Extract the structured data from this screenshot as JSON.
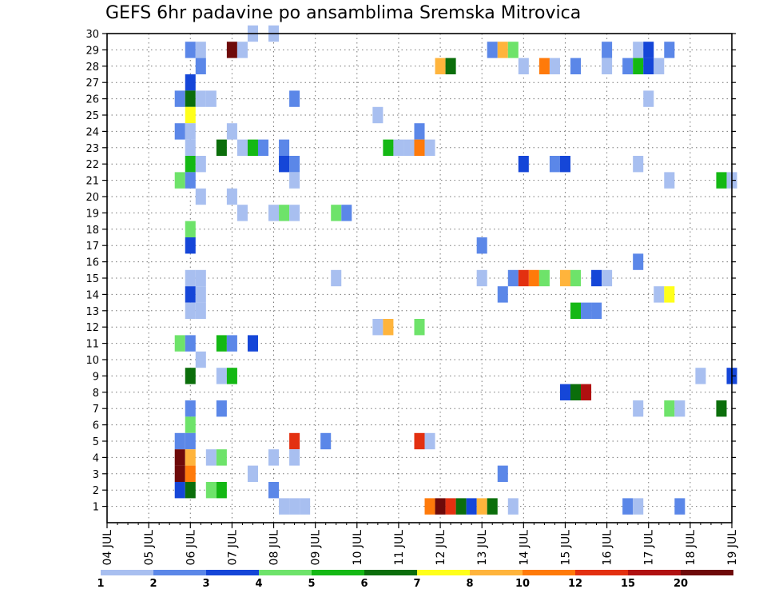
{
  "chart_data": {
    "type": "heatmap",
    "title": "GEFS 6hr padavine po ansamblima Sremska Mitrovica",
    "x_tick_labels": [
      "04 JUL",
      "05 JUL",
      "06 JUL",
      "07 JUL",
      "08 JUL",
      "09 JUL",
      "10 JUL",
      "11 JUL",
      "12 JUL",
      "13 JUL",
      "14 JUL",
      "15 JUL",
      "16 JUL",
      "17 JUL",
      "18 JUL",
      "19 JUL"
    ],
    "x_range_days": [
      0,
      15
    ],
    "y_tick_labels": [
      "1",
      "2",
      "3",
      "4",
      "5",
      "6",
      "7",
      "8",
      "9",
      "10",
      "11",
      "12",
      "13",
      "14",
      "15",
      "16",
      "17",
      "18",
      "19",
      "20",
      "21",
      "22",
      "23",
      "24",
      "25",
      "26",
      "27",
      "28",
      "29",
      "30"
    ],
    "y_range": [
      0,
      30
    ],
    "grid": true,
    "colorbar": {
      "labels": [
        "1",
        "2",
        "3",
        "4",
        "5",
        "6",
        "7",
        "8",
        "10",
        "12",
        "15",
        "20"
      ],
      "colors": [
        "#a8bff0",
        "#5b87e8",
        "#1546d8",
        "#6ee36a",
        "#14b814",
        "#0b6e0b",
        "#ffff1a",
        "#ffb43c",
        "#ff7a0a",
        "#e33010",
        "#b01010",
        "#6e0a0a"
      ]
    },
    "cells": [
      {
        "x": 3.5,
        "y": 30,
        "c": 0
      },
      {
        "x": 4.0,
        "y": 30,
        "c": 0
      },
      {
        "x": 2.0,
        "y": 29,
        "c": 1
      },
      {
        "x": 2.25,
        "y": 29,
        "c": 0
      },
      {
        "x": 3.0,
        "y": 29,
        "c": 11
      },
      {
        "x": 3.25,
        "y": 29,
        "c": 0
      },
      {
        "x": 9.25,
        "y": 29,
        "c": 1
      },
      {
        "x": 9.5,
        "y": 29,
        "c": 7
      },
      {
        "x": 9.75,
        "y": 29,
        "c": 3
      },
      {
        "x": 12.0,
        "y": 29,
        "c": 1
      },
      {
        "x": 12.75,
        "y": 29,
        "c": 0
      },
      {
        "x": 13.0,
        "y": 29,
        "c": 2
      },
      {
        "x": 13.5,
        "y": 29,
        "c": 1
      },
      {
        "x": 2.25,
        "y": 28,
        "c": 1
      },
      {
        "x": 8.0,
        "y": 28,
        "c": 7
      },
      {
        "x": 8.25,
        "y": 28,
        "c": 5
      },
      {
        "x": 10.0,
        "y": 28,
        "c": 0
      },
      {
        "x": 10.5,
        "y": 28,
        "c": 8
      },
      {
        "x": 10.75,
        "y": 28,
        "c": 0
      },
      {
        "x": 11.25,
        "y": 28,
        "c": 1
      },
      {
        "x": 12.0,
        "y": 28,
        "c": 0
      },
      {
        "x": 12.5,
        "y": 28,
        "c": 1
      },
      {
        "x": 12.75,
        "y": 28,
        "c": 4
      },
      {
        "x": 13.0,
        "y": 28,
        "c": 2
      },
      {
        "x": 13.25,
        "y": 28,
        "c": 0
      },
      {
        "x": 2.0,
        "y": 27,
        "c": 2
      },
      {
        "x": 1.75,
        "y": 26,
        "c": 1
      },
      {
        "x": 2.0,
        "y": 26,
        "c": 5
      },
      {
        "x": 2.25,
        "y": 26,
        "c": 0
      },
      {
        "x": 2.5,
        "y": 26,
        "c": 0
      },
      {
        "x": 4.5,
        "y": 26,
        "c": 1
      },
      {
        "x": 13.0,
        "y": 26,
        "c": 0
      },
      {
        "x": 2.0,
        "y": 25,
        "c": 6
      },
      {
        "x": 6.5,
        "y": 25,
        "c": 0
      },
      {
        "x": 1.75,
        "y": 24,
        "c": 1
      },
      {
        "x": 2.0,
        "y": 24,
        "c": 0
      },
      {
        "x": 3.0,
        "y": 24,
        "c": 0
      },
      {
        "x": 7.5,
        "y": 24,
        "c": 1
      },
      {
        "x": 2.0,
        "y": 23,
        "c": 0
      },
      {
        "x": 2.75,
        "y": 23,
        "c": 5
      },
      {
        "x": 3.25,
        "y": 23,
        "c": 0
      },
      {
        "x": 3.5,
        "y": 23,
        "c": 4
      },
      {
        "x": 3.75,
        "y": 23,
        "c": 1
      },
      {
        "x": 4.25,
        "y": 23,
        "c": 1
      },
      {
        "x": 6.75,
        "y": 23,
        "c": 4
      },
      {
        "x": 7.0,
        "y": 23,
        "c": 0
      },
      {
        "x": 7.25,
        "y": 23,
        "c": 0
      },
      {
        "x": 7.5,
        "y": 23,
        "c": 8
      },
      {
        "x": 7.75,
        "y": 23,
        "c": 0
      },
      {
        "x": 2.0,
        "y": 22,
        "c": 4
      },
      {
        "x": 2.25,
        "y": 22,
        "c": 0
      },
      {
        "x": 4.25,
        "y": 22,
        "c": 2
      },
      {
        "x": 4.5,
        "y": 22,
        "c": 1
      },
      {
        "x": 10.0,
        "y": 22,
        "c": 2
      },
      {
        "x": 10.75,
        "y": 22,
        "c": 1
      },
      {
        "x": 11.0,
        "y": 22,
        "c": 2
      },
      {
        "x": 12.75,
        "y": 22,
        "c": 0
      },
      {
        "x": 1.75,
        "y": 21,
        "c": 3
      },
      {
        "x": 2.0,
        "y": 21,
        "c": 1
      },
      {
        "x": 4.5,
        "y": 21,
        "c": 0
      },
      {
        "x": 13.5,
        "y": 21,
        "c": 0
      },
      {
        "x": 14.75,
        "y": 21,
        "c": 4
      },
      {
        "x": 15.0,
        "y": 21,
        "c": 0
      },
      {
        "x": 2.25,
        "y": 20,
        "c": 0
      },
      {
        "x": 3.0,
        "y": 20,
        "c": 0
      },
      {
        "x": 3.25,
        "y": 19,
        "c": 0
      },
      {
        "x": 4.0,
        "y": 19,
        "c": 0
      },
      {
        "x": 4.25,
        "y": 19,
        "c": 3
      },
      {
        "x": 4.5,
        "y": 19,
        "c": 0
      },
      {
        "x": 5.5,
        "y": 19,
        "c": 3
      },
      {
        "x": 5.75,
        "y": 19,
        "c": 1
      },
      {
        "x": 2.0,
        "y": 18,
        "c": 3
      },
      {
        "x": 2.0,
        "y": 17,
        "c": 2
      },
      {
        "x": 9.0,
        "y": 17,
        "c": 1
      },
      {
        "x": 12.75,
        "y": 16,
        "c": 1
      },
      {
        "x": 2.0,
        "y": 15,
        "c": 0
      },
      {
        "x": 2.25,
        "y": 15,
        "c": 0
      },
      {
        "x": 5.5,
        "y": 15,
        "c": 0
      },
      {
        "x": 9.0,
        "y": 15,
        "c": 0
      },
      {
        "x": 9.75,
        "y": 15,
        "c": 1
      },
      {
        "x": 10.0,
        "y": 15,
        "c": 9
      },
      {
        "x": 10.25,
        "y": 15,
        "c": 8
      },
      {
        "x": 10.5,
        "y": 15,
        "c": 3
      },
      {
        "x": 11.0,
        "y": 15,
        "c": 7
      },
      {
        "x": 11.25,
        "y": 15,
        "c": 3
      },
      {
        "x": 11.75,
        "y": 15,
        "c": 2
      },
      {
        "x": 12.0,
        "y": 15,
        "c": 0
      },
      {
        "x": 2.0,
        "y": 14,
        "c": 2
      },
      {
        "x": 2.25,
        "y": 14,
        "c": 0
      },
      {
        "x": 9.5,
        "y": 14,
        "c": 1
      },
      {
        "x": 13.25,
        "y": 14,
        "c": 0
      },
      {
        "x": 13.5,
        "y": 14,
        "c": 6
      },
      {
        "x": 2.0,
        "y": 13,
        "c": 0
      },
      {
        "x": 2.25,
        "y": 13,
        "c": 0
      },
      {
        "x": 11.25,
        "y": 13,
        "c": 4
      },
      {
        "x": 11.5,
        "y": 13,
        "c": 1
      },
      {
        "x": 11.75,
        "y": 13,
        "c": 1
      },
      {
        "x": 6.5,
        "y": 12,
        "c": 0
      },
      {
        "x": 6.75,
        "y": 12,
        "c": 7
      },
      {
        "x": 7.5,
        "y": 12,
        "c": 3
      },
      {
        "x": 1.75,
        "y": 11,
        "c": 3
      },
      {
        "x": 2.0,
        "y": 11,
        "c": 1
      },
      {
        "x": 2.75,
        "y": 11,
        "c": 4
      },
      {
        "x": 3.0,
        "y": 11,
        "c": 1
      },
      {
        "x": 3.5,
        "y": 11,
        "c": 2
      },
      {
        "x": 2.25,
        "y": 10,
        "c": 0
      },
      {
        "x": 2.0,
        "y": 9,
        "c": 5
      },
      {
        "x": 2.75,
        "y": 9,
        "c": 0
      },
      {
        "x": 3.0,
        "y": 9,
        "c": 4
      },
      {
        "x": 14.25,
        "y": 9,
        "c": 0
      },
      {
        "x": 15.0,
        "y": 9,
        "c": 2
      },
      {
        "x": 11.0,
        "y": 8,
        "c": 2
      },
      {
        "x": 11.25,
        "y": 8,
        "c": 5
      },
      {
        "x": 11.5,
        "y": 8,
        "c": 10
      },
      {
        "x": 2.0,
        "y": 7,
        "c": 1
      },
      {
        "x": 2.75,
        "y": 7,
        "c": 1
      },
      {
        "x": 12.75,
        "y": 7,
        "c": 0
      },
      {
        "x": 13.5,
        "y": 7,
        "c": 3
      },
      {
        "x": 13.75,
        "y": 7,
        "c": 0
      },
      {
        "x": 14.75,
        "y": 7,
        "c": 5
      },
      {
        "x": 2.0,
        "y": 6,
        "c": 3
      },
      {
        "x": 1.75,
        "y": 5,
        "c": 1
      },
      {
        "x": 2.0,
        "y": 5,
        "c": 1
      },
      {
        "x": 4.5,
        "y": 5,
        "c": 9
      },
      {
        "x": 5.25,
        "y": 5,
        "c": 1
      },
      {
        "x": 7.5,
        "y": 5,
        "c": 9
      },
      {
        "x": 7.75,
        "y": 5,
        "c": 0
      },
      {
        "x": 1.75,
        "y": 4,
        "c": 11
      },
      {
        "x": 2.0,
        "y": 4,
        "c": 7
      },
      {
        "x": 2.5,
        "y": 4,
        "c": 0
      },
      {
        "x": 2.75,
        "y": 4,
        "c": 3
      },
      {
        "x": 4.0,
        "y": 4,
        "c": 0
      },
      {
        "x": 4.5,
        "y": 4,
        "c": 0
      },
      {
        "x": 1.75,
        "y": 3,
        "c": 11
      },
      {
        "x": 2.0,
        "y": 3,
        "c": 8
      },
      {
        "x": 3.5,
        "y": 3,
        "c": 0
      },
      {
        "x": 9.5,
        "y": 3,
        "c": 1
      },
      {
        "x": 1.75,
        "y": 2,
        "c": 2
      },
      {
        "x": 2.0,
        "y": 2,
        "c": 5
      },
      {
        "x": 2.5,
        "y": 2,
        "c": 3
      },
      {
        "x": 2.75,
        "y": 2,
        "c": 4
      },
      {
        "x": 4.0,
        "y": 2,
        "c": 1
      },
      {
        "x": 4.25,
        "y": 1,
        "c": 0
      },
      {
        "x": 4.5,
        "y": 1,
        "c": 0
      },
      {
        "x": 4.75,
        "y": 1,
        "c": 0
      },
      {
        "x": 7.75,
        "y": 1,
        "c": 8
      },
      {
        "x": 8.0,
        "y": 1,
        "c": 11
      },
      {
        "x": 8.25,
        "y": 1,
        "c": 9
      },
      {
        "x": 8.5,
        "y": 1,
        "c": 5
      },
      {
        "x": 8.75,
        "y": 1,
        "c": 2
      },
      {
        "x": 9.0,
        "y": 1,
        "c": 7
      },
      {
        "x": 9.25,
        "y": 1,
        "c": 5
      },
      {
        "x": 9.75,
        "y": 1,
        "c": 0
      },
      {
        "x": 12.5,
        "y": 1,
        "c": 1
      },
      {
        "x": 12.75,
        "y": 1,
        "c": 0
      },
      {
        "x": 13.75,
        "y": 1,
        "c": 1
      }
    ]
  }
}
